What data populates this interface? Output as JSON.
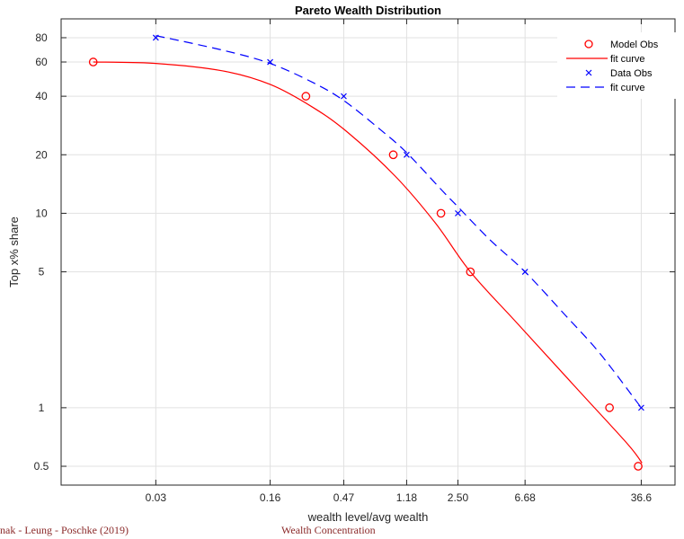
{
  "chart_data": {
    "type": "scatter",
    "title": "Pareto Wealth Distribution",
    "xlabel": "wealth level/avg wealth",
    "ylabel": "Top x% share",
    "x_scale": "log",
    "y_scale": "log",
    "xlim": [
      0.0075,
      60
    ],
    "ylim": [
      0.4,
      100
    ],
    "x_ticks": [
      0.03,
      0.16,
      0.47,
      1.18,
      2.5,
      6.68,
      36.6
    ],
    "x_tick_labels": [
      "0.03",
      "0.16",
      "0.47",
      "1.18",
      "2.50",
      "6.68",
      "36.6"
    ],
    "y_ticks": [
      0.5,
      1,
      5,
      10,
      20,
      40,
      60,
      80
    ],
    "y_tick_labels": [
      "0.5",
      "1",
      "5",
      "10",
      "20",
      "40",
      "60",
      "80"
    ],
    "grid": true,
    "legend_position": "top-right",
    "series": [
      {
        "name": "Model Obs",
        "kind": "markers",
        "marker": "circle",
        "color": "#ff0000",
        "x": [
          0.012,
          0.27,
          0.97,
          1.95,
          3.0,
          23.0,
          35.0
        ],
        "y": [
          60,
          40,
          20,
          10,
          5,
          1,
          0.5
        ]
      },
      {
        "name": "fit curve",
        "kind": "line",
        "dash": "solid",
        "color": "#ff0000",
        "x": [
          0.012,
          0.03,
          0.08,
          0.16,
          0.3,
          0.5,
          1.0,
          1.8,
          3.0,
          6.0,
          15.0,
          30.0,
          37.0
        ],
        "y": [
          60,
          59,
          54,
          46,
          35,
          26,
          15.5,
          8.9,
          5.0,
          2.7,
          1.2,
          0.65,
          0.52
        ]
      },
      {
        "name": "Data Obs",
        "kind": "markers",
        "marker": "x",
        "color": "#0000ff",
        "x": [
          0.03,
          0.16,
          0.47,
          1.18,
          2.5,
          6.68,
          36.6
        ],
        "y": [
          80,
          60,
          40,
          20,
          10,
          5,
          1
        ]
      },
      {
        "name": "fit curve",
        "kind": "line",
        "dash": "dashed",
        "color": "#0000ff",
        "x": [
          0.03,
          0.08,
          0.16,
          0.3,
          0.47,
          0.8,
          1.18,
          2.0,
          2.5,
          4.0,
          6.68,
          12.0,
          20.0,
          36.6
        ],
        "y": [
          82,
          69,
          59,
          47,
          38,
          27,
          20.5,
          13.0,
          10.8,
          7.3,
          5.0,
          3.0,
          1.9,
          1.0
        ]
      }
    ]
  },
  "footer": {
    "left": "nak - Leung - Poschke  (2019)",
    "right": "Wealth Concentration"
  },
  "colors": {
    "model": "#ff0000",
    "data": "#0000ff",
    "grid": "#e1e1e1",
    "axis": "#262626",
    "footer": "#8b2a2a"
  }
}
